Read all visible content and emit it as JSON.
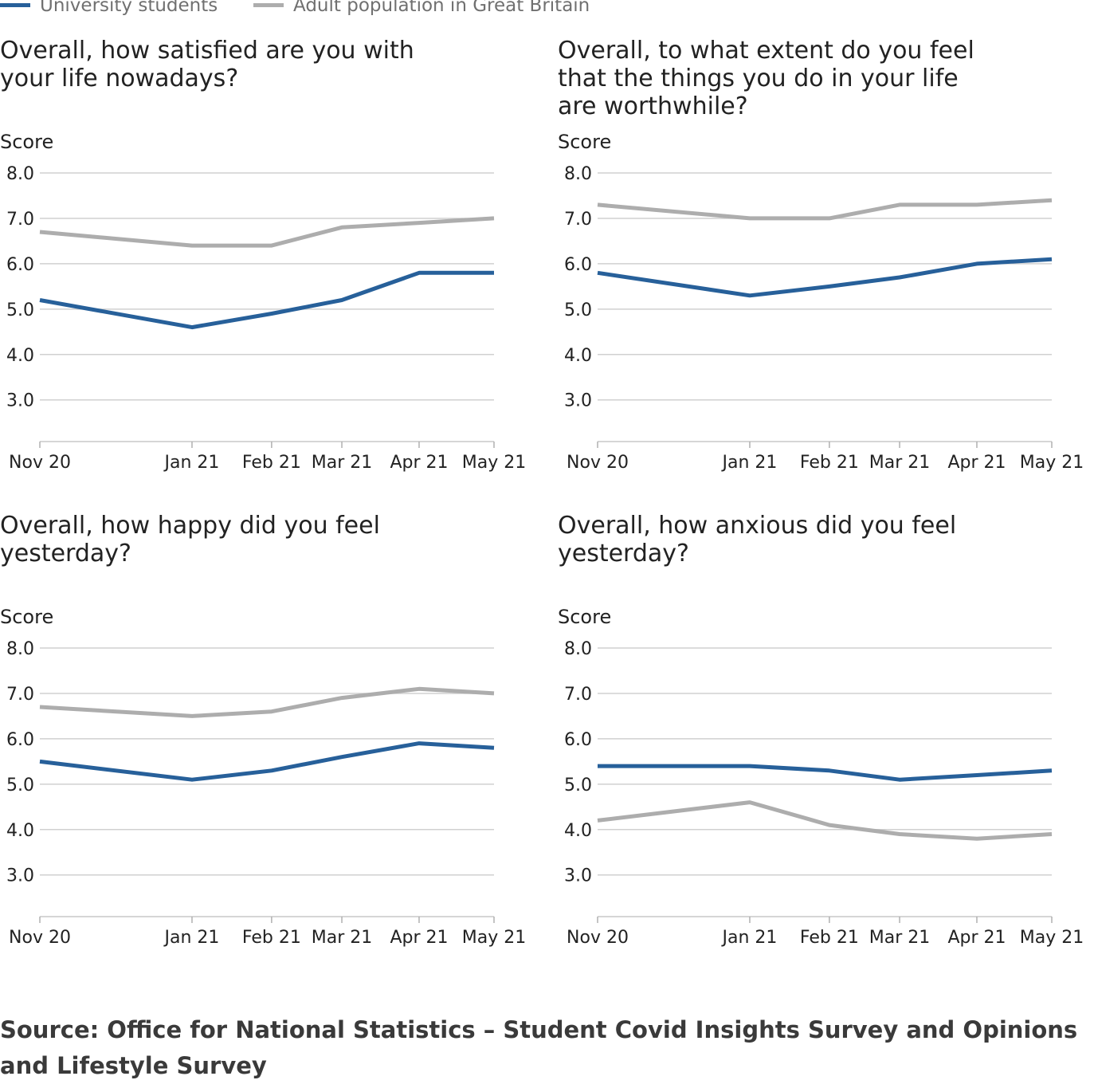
{
  "legend": [
    {
      "label": "University students",
      "color": "#27609a"
    },
    {
      "label": "Adult population in Great Britain",
      "color": "#adadad"
    }
  ],
  "source": "Source: Office for National Statistics – Student Covid Insights Survey and Opinions and Lifestyle Survey",
  "chart_data": [
    {
      "type": "line",
      "title": "Overall, how satisfied are you with your life nowadays?",
      "ylabel": "Score",
      "ylim": [
        2.1,
        8.0
      ],
      "yticks": [
        "8.0",
        "7.0",
        "6.0",
        "5.0",
        "4.0",
        "3.0"
      ],
      "categories": [
        "Nov 20",
        "Jan 21",
        "Feb 21",
        "Mar 21",
        "Apr 21",
        "May 21"
      ],
      "x_dates": [
        "2020-11-01",
        "2021-01-05",
        "2021-02-08",
        "2021-03-10",
        "2021-04-12",
        "2021-05-14"
      ],
      "series": [
        {
          "name": "University students",
          "color": "#27609a",
          "values": [
            5.2,
            4.6,
            4.9,
            5.2,
            5.8,
            5.8
          ]
        },
        {
          "name": "Adult population in Great Britain",
          "color": "#adadad",
          "values": [
            6.7,
            6.4,
            6.4,
            6.8,
            6.9,
            7.0
          ]
        }
      ]
    },
    {
      "type": "line",
      "title": "Overall, to what extent do you feel that the things you do in your life are worthwhile?",
      "ylabel": "Score",
      "ylim": [
        2.1,
        8.0
      ],
      "yticks": [
        "8.0",
        "7.0",
        "6.0",
        "5.0",
        "4.0",
        "3.0"
      ],
      "categories": [
        "Nov 20",
        "Jan 21",
        "Feb 21",
        "Mar 21",
        "Apr 21",
        "May 21"
      ],
      "x_dates": [
        "2020-11-01",
        "2021-01-05",
        "2021-02-08",
        "2021-03-10",
        "2021-04-12",
        "2021-05-14"
      ],
      "series": [
        {
          "name": "University students",
          "color": "#27609a",
          "values": [
            5.8,
            5.3,
            5.5,
            5.7,
            6.0,
            6.1
          ]
        },
        {
          "name": "Adult population in Great Britain",
          "color": "#adadad",
          "values": [
            7.3,
            7.0,
            7.0,
            7.3,
            7.3,
            7.4
          ]
        }
      ]
    },
    {
      "type": "line",
      "title": "Overall, how happy did you feel yesterday?",
      "ylabel": "Score",
      "ylim": [
        2.1,
        8.0
      ],
      "yticks": [
        "8.0",
        "7.0",
        "6.0",
        "5.0",
        "4.0",
        "3.0"
      ],
      "categories": [
        "Nov 20",
        "Jan 21",
        "Feb 21",
        "Mar 21",
        "Apr 21",
        "May 21"
      ],
      "x_dates": [
        "2020-11-01",
        "2021-01-05",
        "2021-02-08",
        "2021-03-10",
        "2021-04-12",
        "2021-05-14"
      ],
      "series": [
        {
          "name": "University students",
          "color": "#27609a",
          "values": [
            5.5,
            5.1,
            5.3,
            5.6,
            5.9,
            5.8
          ]
        },
        {
          "name": "Adult population in Great Britain",
          "color": "#adadad",
          "values": [
            6.7,
            6.5,
            6.6,
            6.9,
            7.1,
            7.0
          ]
        }
      ]
    },
    {
      "type": "line",
      "title": "Overall, how anxious did you feel yesterday?",
      "ylabel": "Score",
      "ylim": [
        2.1,
        8.0
      ],
      "yticks": [
        "8.0",
        "7.0",
        "6.0",
        "5.0",
        "4.0",
        "3.0"
      ],
      "categories": [
        "Nov 20",
        "Jan 21",
        "Feb 21",
        "Mar 21",
        "Apr 21",
        "May 21"
      ],
      "x_dates": [
        "2020-11-01",
        "2021-01-05",
        "2021-02-08",
        "2021-03-10",
        "2021-04-12",
        "2021-05-14"
      ],
      "series": [
        {
          "name": "University students",
          "color": "#27609a",
          "values": [
            5.4,
            5.4,
            5.3,
            5.1,
            5.2,
            5.3
          ]
        },
        {
          "name": "Adult population in Great Britain",
          "color": "#adadad",
          "values": [
            4.2,
            4.6,
            4.1,
            3.9,
            3.8,
            3.9
          ]
        }
      ]
    }
  ]
}
